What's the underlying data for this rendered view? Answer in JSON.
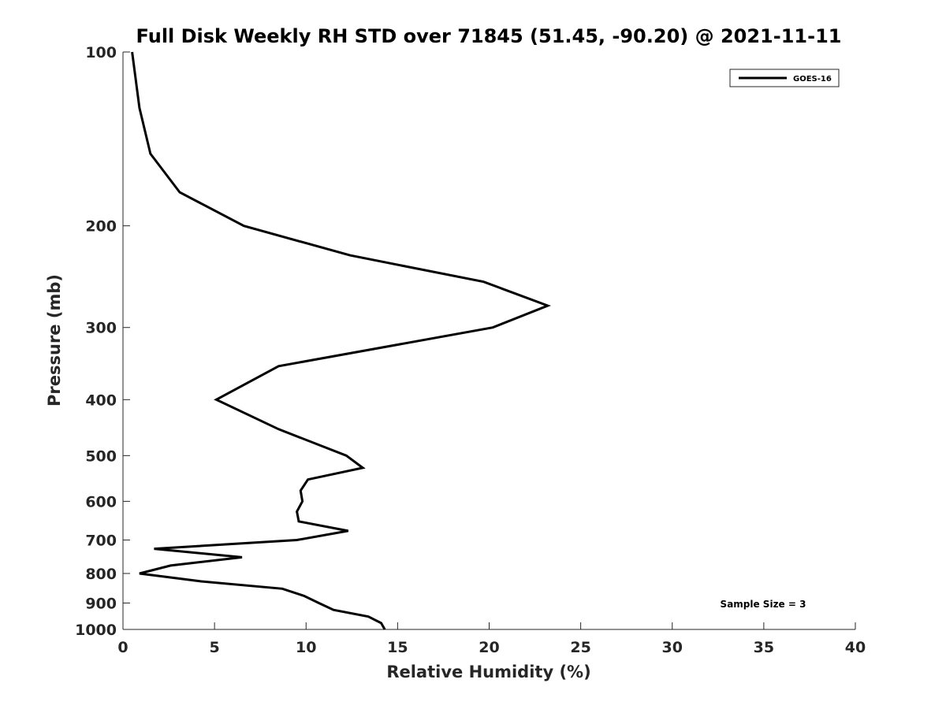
{
  "chart_data": {
    "type": "line",
    "title": "Full Disk Weekly RH STD over 71845 (51.45, -90.20) @ 2021-11-11",
    "xlabel": "Relative Humidity (%)",
    "ylabel": "Pressure (mb)",
    "xlim": [
      0,
      40
    ],
    "ylim": [
      100,
      1000
    ],
    "y_scale": "log",
    "y_reversed": true,
    "x_ticks": [
      0,
      5,
      10,
      15,
      20,
      25,
      30,
      35,
      40
    ],
    "y_ticks": [
      100,
      200,
      300,
      400,
      500,
      600,
      700,
      800,
      900,
      1000
    ],
    "grid": false,
    "legend_position": "top-right",
    "annotation": "Sample Size = 3",
    "series": [
      {
        "name": "GOES-16",
        "color": "#000000",
        "points": [
          {
            "x": 0.5,
            "y": 100
          },
          {
            "x": 0.9,
            "y": 125
          },
          {
            "x": 1.5,
            "y": 150
          },
          {
            "x": 3.1,
            "y": 175
          },
          {
            "x": 6.6,
            "y": 200
          },
          {
            "x": 12.4,
            "y": 225
          },
          {
            "x": 19.7,
            "y": 250
          },
          {
            "x": 23.2,
            "y": 275
          },
          {
            "x": 20.2,
            "y": 300
          },
          {
            "x": 8.5,
            "y": 350
          },
          {
            "x": 5.1,
            "y": 400
          },
          {
            "x": 8.5,
            "y": 450
          },
          {
            "x": 12.2,
            "y": 500
          },
          {
            "x": 13.1,
            "y": 525
          },
          {
            "x": 10.1,
            "y": 550
          },
          {
            "x": 9.7,
            "y": 575
          },
          {
            "x": 9.8,
            "y": 600
          },
          {
            "x": 9.5,
            "y": 625
          },
          {
            "x": 9.6,
            "y": 650
          },
          {
            "x": 12.3,
            "y": 675
          },
          {
            "x": 9.5,
            "y": 700
          },
          {
            "x": 1.7,
            "y": 725
          },
          {
            "x": 6.5,
            "y": 750
          },
          {
            "x": 2.6,
            "y": 775
          },
          {
            "x": 0.9,
            "y": 800
          },
          {
            "x": 4.2,
            "y": 825
          },
          {
            "x": 8.7,
            "y": 850
          },
          {
            "x": 9.9,
            "y": 875
          },
          {
            "x": 10.7,
            "y": 900
          },
          {
            "x": 11.5,
            "y": 925
          },
          {
            "x": 13.4,
            "y": 950
          },
          {
            "x": 14.1,
            "y": 975
          },
          {
            "x": 14.3,
            "y": 1000
          }
        ]
      }
    ]
  }
}
